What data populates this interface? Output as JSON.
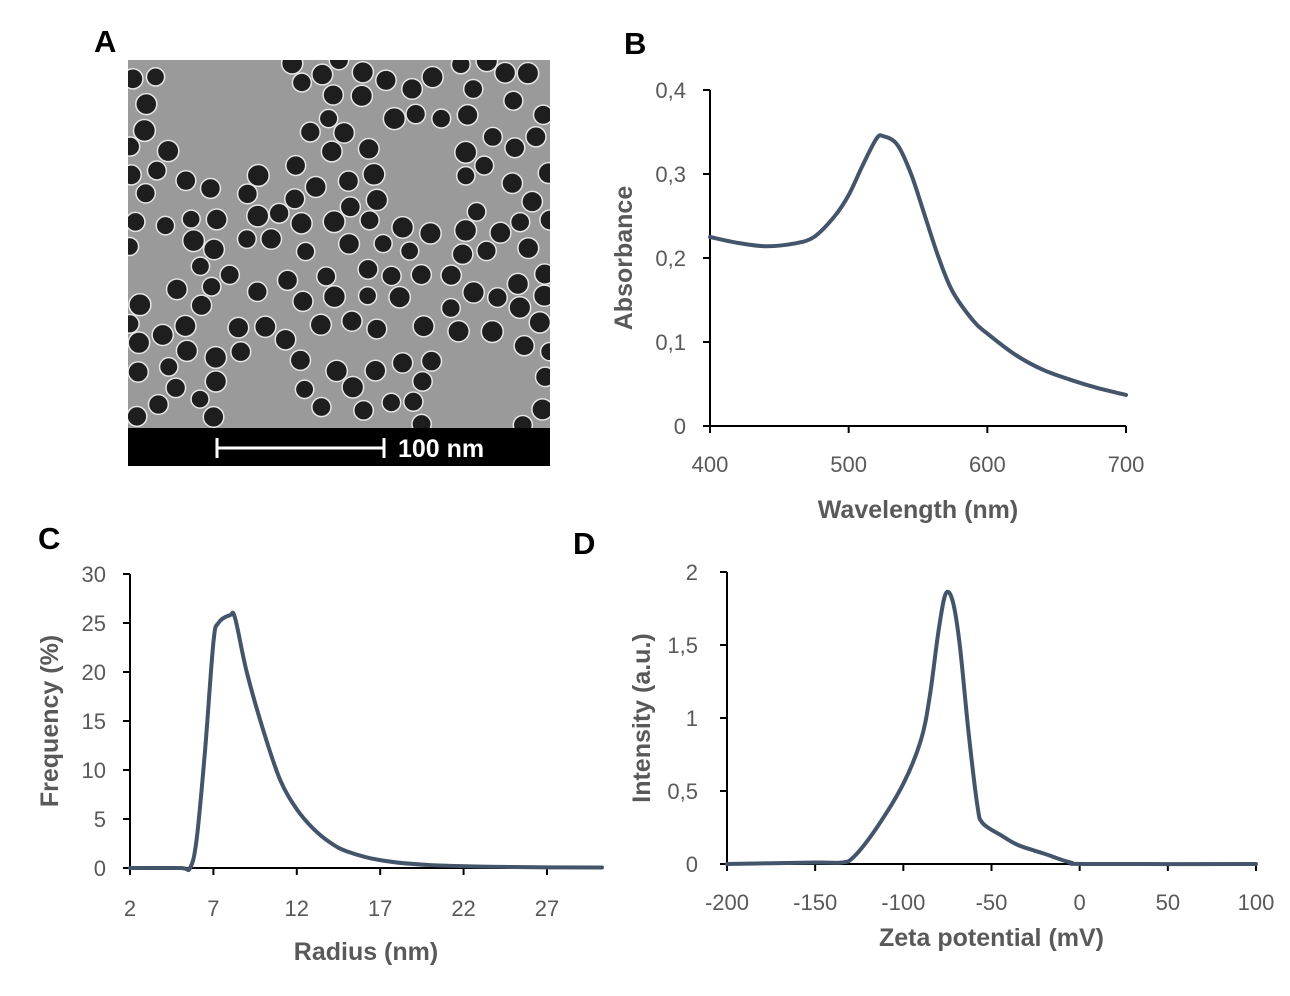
{
  "panels": {
    "A": "A",
    "B": "B",
    "C": "C",
    "D": "D"
  },
  "tem_image": {
    "scale_bar_label": "100 nm",
    "background": "#9a9a9a",
    "particle_color": "#1e1e1e"
  },
  "line_color": "#44546A",
  "chart_data": [
    {
      "panel": "B",
      "type": "line",
      "xlabel": "Wavelength (nm)",
      "ylabel": "Absorbance",
      "xlim": [
        400,
        700
      ],
      "ylim": [
        0,
        0.4
      ],
      "xticks": [
        400,
        500,
        600,
        700
      ],
      "xtick_labels": [
        "400",
        "500",
        "600",
        "700"
      ],
      "yticks": [
        0,
        0.1,
        0.2,
        0.3,
        0.4
      ],
      "ytick_labels": [
        "0",
        "0,1",
        "0,2",
        "0,3",
        "0,4"
      ],
      "grid": false,
      "x": [
        400,
        420,
        440,
        460,
        475,
        490,
        500,
        510,
        520,
        525,
        535,
        545,
        555,
        565,
        575,
        590,
        600,
        620,
        640,
        660,
        680,
        700
      ],
      "y": [
        0.225,
        0.218,
        0.214,
        0.217,
        0.225,
        0.25,
        0.275,
        0.31,
        0.342,
        0.345,
        0.335,
        0.3,
        0.25,
        0.2,
        0.16,
        0.125,
        0.11,
        0.085,
        0.067,
        0.055,
        0.045,
        0.037
      ]
    },
    {
      "panel": "C",
      "type": "line",
      "xlabel": "Radius (nm)",
      "ylabel": "Frequency (%)",
      "xlim": [
        2,
        30.3
      ],
      "ylim": [
        0,
        30
      ],
      "xticks": [
        2,
        7,
        12,
        17,
        22,
        27
      ],
      "xtick_labels": [
        "2",
        "7",
        "12",
        "17",
        "22",
        "27"
      ],
      "yticks": [
        0,
        5,
        10,
        15,
        20,
        25,
        30
      ],
      "ytick_labels": [
        "0",
        "5",
        "10",
        "15",
        "20",
        "25",
        "30"
      ],
      "grid": false,
      "x": [
        2,
        5,
        5.6,
        6,
        6.5,
        7,
        7.3,
        8,
        8.3,
        9,
        10,
        11,
        12,
        13,
        14,
        15,
        17,
        20,
        25,
        30.3
      ],
      "y": [
        0,
        0,
        0,
        3,
        12,
        23,
        25,
        25.8,
        25.5,
        20,
        14,
        9,
        6,
        4,
        2.6,
        1.7,
        0.8,
        0.3,
        0.1,
        0.05
      ]
    },
    {
      "panel": "D",
      "type": "line",
      "xlabel": "Zeta potential (mV)",
      "ylabel": "Intensity (a.u.)",
      "xlim": [
        -200,
        100
      ],
      "ylim": [
        0,
        2
      ],
      "xticks": [
        -200,
        -150,
        -100,
        -50,
        0,
        50,
        100
      ],
      "xtick_labels": [
        "-200",
        "-150",
        "-100",
        "-50",
        "0",
        "50",
        "100"
      ],
      "yticks": [
        0,
        0.5,
        1,
        1.5,
        2
      ],
      "ytick_labels": [
        "0",
        "0,5",
        "1",
        "1,5",
        "2"
      ],
      "grid": false,
      "x": [
        -200,
        -150,
        -135,
        -128,
        -115,
        -100,
        -90,
        -85,
        -80,
        -76,
        -72,
        -68,
        -63,
        -58,
        -55,
        -45,
        -35,
        -20,
        -5,
        5,
        100
      ],
      "y": [
        0,
        0.01,
        0.01,
        0.05,
        0.25,
        0.55,
        0.85,
        1.15,
        1.6,
        1.85,
        1.8,
        1.5,
        0.9,
        0.4,
        0.28,
        0.2,
        0.13,
        0.07,
        0.01,
        0,
        0
      ]
    }
  ]
}
